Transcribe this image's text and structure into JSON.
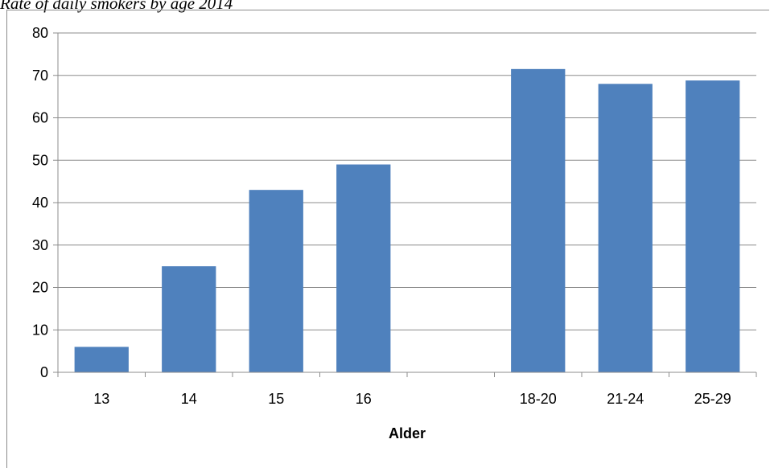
{
  "title": "Rate of daily smokers by age 2014",
  "chart_data": {
    "type": "bar",
    "title": "Rate of daily smokers by age 2014",
    "xlabel": "Alder",
    "ylabel": "",
    "categories": [
      "13",
      "14",
      "15",
      "16",
      "",
      "18-20",
      "21-24",
      "25-29"
    ],
    "values": [
      6,
      25,
      43,
      49,
      null,
      71.5,
      68,
      68.8
    ],
    "ylim": [
      0,
      80
    ],
    "yticks": [
      0,
      10,
      20,
      30,
      40,
      50,
      60,
      70,
      80
    ],
    "grid": true,
    "legend": "none",
    "bar_color": "#4f81bd"
  }
}
